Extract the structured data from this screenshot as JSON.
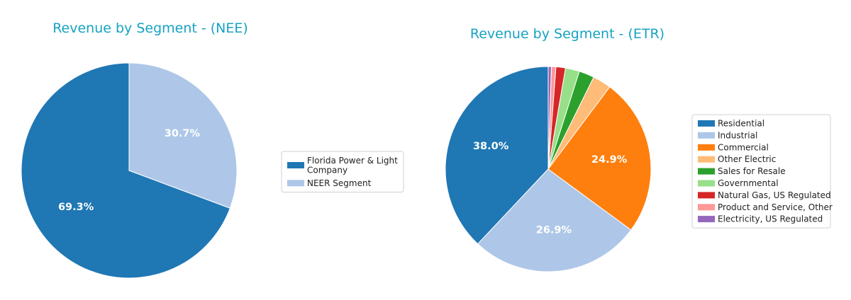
{
  "chart_data": [
    {
      "type": "pie",
      "title": "Revenue by Segment - (NEE)",
      "categories": [
        "Florida Power & Light Company",
        "NEER Segment"
      ],
      "values": [
        69.3,
        30.7
      ],
      "labels": [
        "69.3%",
        "30.7%"
      ],
      "colors": [
        "#1f77b4",
        "#aec7e8"
      ],
      "legend": {
        "placement": "right",
        "entries": [
          {
            "lines": [
              "Florida Power & Light",
              "Company"
            ]
          },
          {
            "lines": [
              "NEER Segment"
            ]
          }
        ]
      }
    },
    {
      "type": "pie",
      "title": "Revenue by Segment - (ETR)",
      "categories": [
        "Residential",
        "Industrial",
        "Commercial",
        "Other Electric",
        "Sales for Resale",
        "Governmental",
        "Natural Gas, US Regulated",
        "Product and Service, Other",
        "Electricity, US Regulated"
      ],
      "values": [
        38.0,
        26.9,
        24.9,
        2.9,
        2.4,
        2.2,
        1.5,
        0.7,
        0.5
      ],
      "labels": [
        "38.0%",
        "26.9%",
        "24.9%",
        "",
        "",
        "",
        "",
        "",
        ""
      ],
      "colors": [
        "#1f77b4",
        "#aec7e8",
        "#ff7f0e",
        "#ffbb78",
        "#2ca02c",
        "#98df8a",
        "#d62728",
        "#ff9896",
        "#9467bd"
      ],
      "legend": {
        "placement": "right",
        "entries": [
          {
            "lines": [
              "Residential"
            ]
          },
          {
            "lines": [
              "Industrial"
            ]
          },
          {
            "lines": [
              "Commercial"
            ]
          },
          {
            "lines": [
              "Other Electric"
            ]
          },
          {
            "lines": [
              "Sales for Resale"
            ]
          },
          {
            "lines": [
              "Governmental"
            ]
          },
          {
            "lines": [
              "Natural Gas, US Regulated"
            ]
          },
          {
            "lines": [
              "Product and Service, Other"
            ]
          },
          {
            "lines": [
              "Electricity, US Regulated"
            ]
          }
        ]
      }
    }
  ]
}
